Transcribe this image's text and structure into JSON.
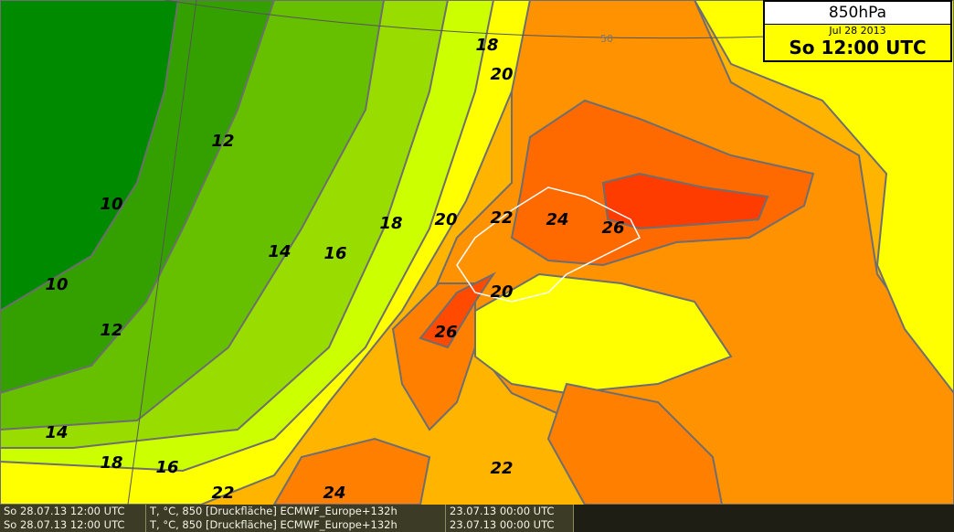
{
  "header": {
    "level": "850hPa",
    "date": "Jul 28 2013",
    "time": "So 12:00 UTC"
  },
  "grid_label": "50",
  "contour_labels": [
    "18",
    "20",
    "12",
    "10",
    "18",
    "20",
    "22",
    "24",
    "26",
    "14",
    "16",
    "10",
    "20",
    "12",
    "26",
    "14",
    "18",
    "16",
    "22",
    "22",
    "24"
  ],
  "footer": [
    [
      "So 28.07.13 12:00 UTC",
      "T, °C, 850 [Druckfläche] ECMWF_Europe+132h",
      "23.07.13 00:00 UTC"
    ],
    [
      "So 28.07.13 12:00 UTC",
      "T, °C, 850 [Druckfläche] ECMWF_Europe+132h",
      "23.07.13 00:00 UTC"
    ]
  ]
}
